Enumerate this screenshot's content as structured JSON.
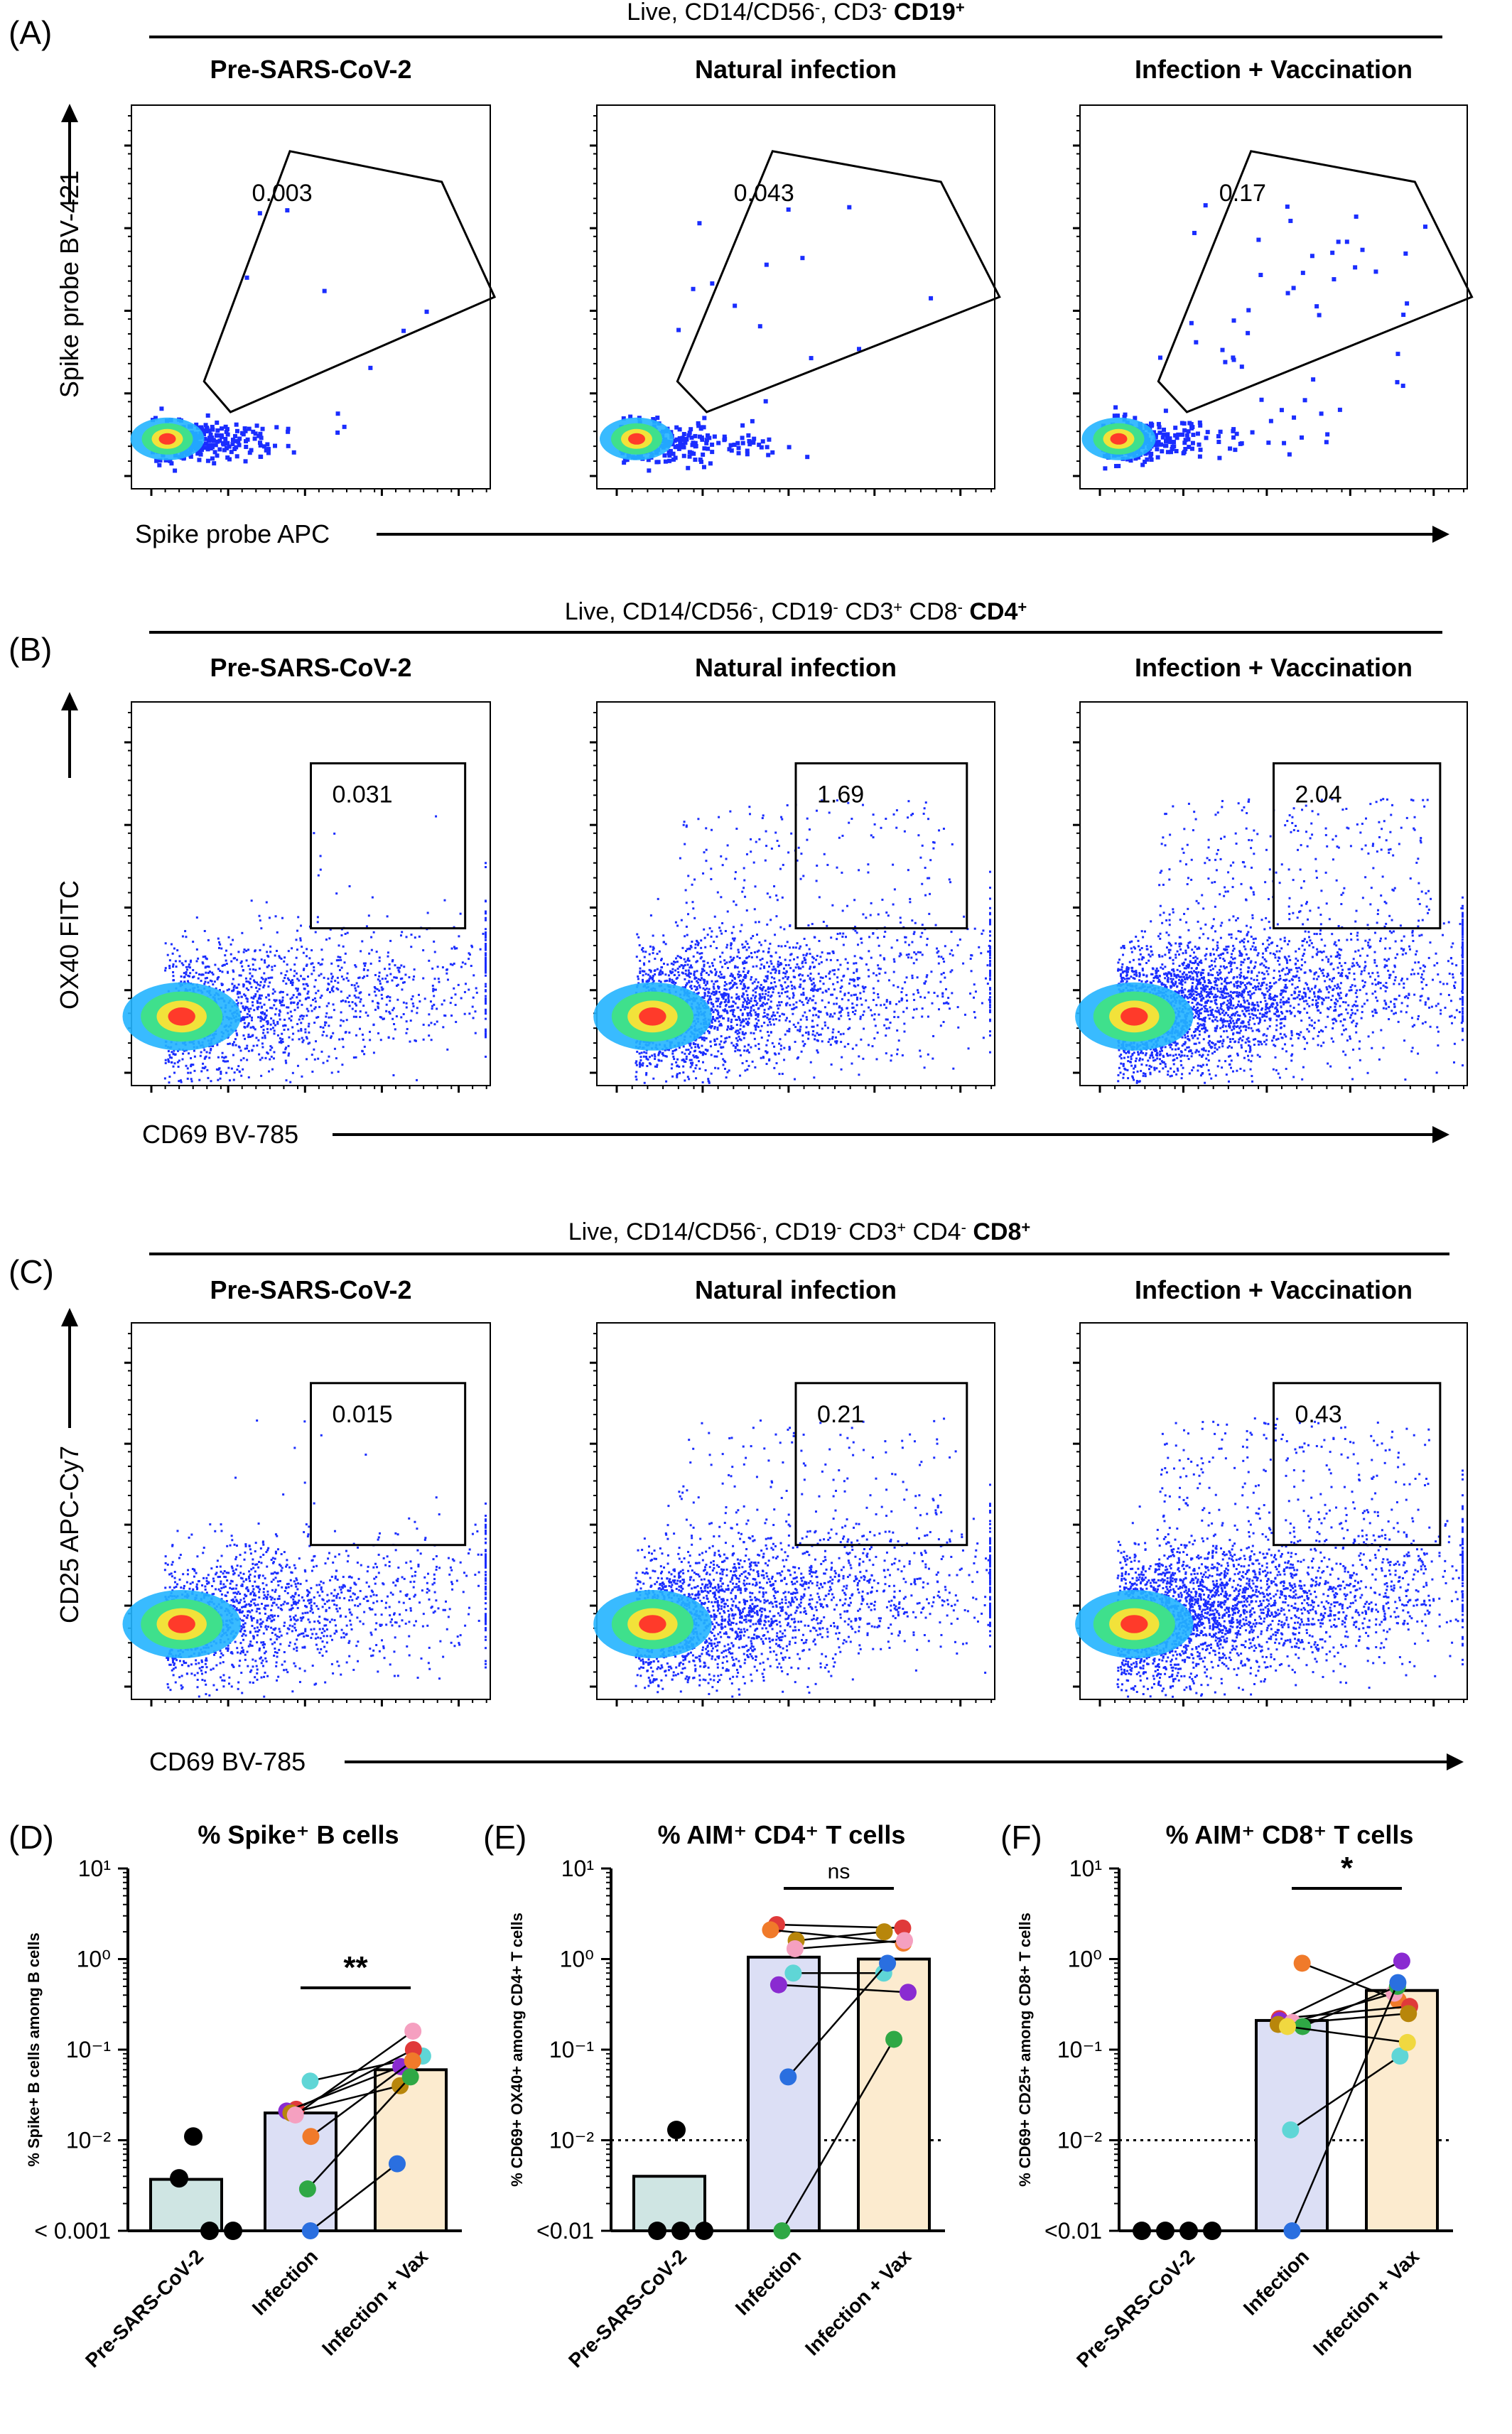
{
  "panels_flow": [
    {
      "letter": "(A)",
      "header": {
        "prefix": "Live, CD14/CD56",
        "sup1": "-",
        "mid": ", CD3",
        "sup2": "-",
        "bold": "CD19",
        "sup3": "+"
      },
      "ylabel": "Spike probe BV-421",
      "xlabel": "Spike probe APC",
      "plots": [
        {
          "title": "Pre-SARS-CoV-2",
          "gate_value": "0.003"
        },
        {
          "title": "Natural infection",
          "gate_value": "0.043"
        },
        {
          "title": "Infection + Vaccination",
          "gate_value": "0.17"
        }
      ]
    },
    {
      "letter": "(B)",
      "header": {
        "prefix": "Live, CD14/CD56",
        "sup1": "-",
        "mid": ", CD19",
        "sup2": "-",
        "mid2": " CD3",
        "sup3": "+",
        "mid3": " CD8",
        "sup4": "-",
        "bold": "CD4",
        "sup5": "+"
      },
      "ylabel": "OX40 FITC",
      "xlabel": "CD69 BV-785",
      "plots": [
        {
          "title": "Pre-SARS-CoV-2",
          "gate_value": "0.031"
        },
        {
          "title": "Natural infection",
          "gate_value": "1.69"
        },
        {
          "title": "Infection + Vaccination",
          "gate_value": "2.04"
        }
      ]
    },
    {
      "letter": "(C)",
      "header": {
        "prefix": "Live, CD14/CD56",
        "sup1": "-",
        "mid": ", CD19",
        "sup2": "-",
        "mid2": " CD3",
        "sup3": "+",
        "mid3": " CD4",
        "sup4": "-",
        "bold": "CD8",
        "sup5": "+"
      },
      "ylabel": "CD25 APC-Cy7",
      "xlabel": "CD69 BV-785",
      "plots": [
        {
          "title": "Pre-SARS-CoV-2",
          "gate_value": "0.015"
        },
        {
          "title": "Natural infection",
          "gate_value": "0.21"
        },
        {
          "title": "Infection + Vaccination",
          "gate_value": "0.43"
        }
      ]
    }
  ],
  "chart_data": [
    {
      "type": "bar",
      "letter": "(D)",
      "title": "% Spike⁺ B cells",
      "ylabel": "% Spike+ B cells among B cells",
      "yscale": "log",
      "yticks": [
        "10¹",
        "10⁰",
        "10⁻¹",
        "10⁻²",
        "< 0.001"
      ],
      "ylim": [
        0.001,
        10
      ],
      "categories": [
        "Pre-SARS-CoV-2",
        "Infection",
        "Infection + Vax"
      ],
      "bar_values": [
        0.0037,
        0.02,
        0.06
      ],
      "bar_colors": [
        "#cfe5e3",
        "#dcdff5",
        "#fcebcf"
      ],
      "significance": {
        "label": "**",
        "from": "Infection",
        "to": "Infection + Vax"
      },
      "reference_line": null,
      "points_pre": [
        0.011,
        0.0038,
        0.001,
        0.001
      ],
      "paired": [
        {
          "color": "#5fd6d6",
          "infection": 0.045,
          "vax": 0.085
        },
        {
          "color": "#e03a3a",
          "infection": 0.022,
          "vax": 0.1
        },
        {
          "color": "#8a2bd1",
          "infection": 0.021,
          "vax": 0.065
        },
        {
          "color": "#b8860b",
          "infection": 0.02,
          "vax": 0.04
        },
        {
          "color": "#f5a0c0",
          "infection": 0.019,
          "vax": 0.16
        },
        {
          "color": "#f07a2a",
          "infection": 0.011,
          "vax": 0.075
        },
        {
          "color": "#2fa845",
          "infection": 0.0029,
          "vax": 0.05
        },
        {
          "color": "#2a6fe0",
          "infection": 0.001,
          "vax": 0.0055
        }
      ]
    },
    {
      "type": "bar",
      "letter": "(E)",
      "title": "% AIM⁺ CD4⁺ T cells",
      "ylabel": "% CD69+ OX40+ among CD4+ T cells",
      "yscale": "log",
      "yticks": [
        "10¹",
        "10⁰",
        "10⁻¹",
        "10⁻²",
        "<0.01"
      ],
      "ylim": [
        0.001,
        10
      ],
      "categories": [
        "Pre-SARS-CoV-2",
        "Infection",
        "Infection + Vax"
      ],
      "bar_values": [
        0.004,
        1.05,
        1.0
      ],
      "bar_colors": [
        "#cfe5e3",
        "#dcdff5",
        "#fcebcf"
      ],
      "significance": {
        "label": "ns",
        "from": "Infection",
        "to": "Infection + Vax"
      },
      "reference_line": 0.01,
      "points_pre": [
        0.013,
        0.001,
        0.001,
        0.001
      ],
      "paired": [
        {
          "color": "#e03a3a",
          "infection": 2.4,
          "vax": 2.2
        },
        {
          "color": "#f07a2a",
          "infection": 2.1,
          "vax": 1.5
        },
        {
          "color": "#b8860b",
          "infection": 1.6,
          "vax": 2.0
        },
        {
          "color": "#f5a0c0",
          "infection": 1.3,
          "vax": 1.6
        },
        {
          "color": "#5fd6d6",
          "infection": 0.7,
          "vax": 0.7
        },
        {
          "color": "#8a2bd1",
          "infection": 0.52,
          "vax": 0.43
        },
        {
          "color": "#2a6fe0",
          "infection": 0.05,
          "vax": 0.9
        },
        {
          "color": "#2fa845",
          "infection": 0.001,
          "vax": 0.13
        }
      ]
    },
    {
      "type": "bar",
      "letter": "(F)",
      "title": "% AIM⁺ CD8⁺ T cells",
      "ylabel": "% CD69+ CD25+ among CD8+ T cells",
      "yscale": "log",
      "yticks": [
        "10¹",
        "10⁰",
        "10⁻¹",
        "10⁻²",
        "<0.01"
      ],
      "ylim": [
        0.001,
        10
      ],
      "categories": [
        "Pre-SARS-CoV-2",
        "Infection",
        "Infection + Vax"
      ],
      "bar_values": [
        0,
        0.21,
        0.45
      ],
      "bar_colors": [
        "#cfe5e3",
        "#dcdff5",
        "#fcebcf"
      ],
      "significance": {
        "label": "*",
        "from": "Infection",
        "to": "Infection + Vax"
      },
      "reference_line": 0.01,
      "points_pre": [
        0.001,
        0.001,
        0.001,
        0.001
      ],
      "paired": [
        {
          "color": "#f07a2a",
          "infection": 0.9,
          "vax": 0.35
        },
        {
          "color": "#e03a3a",
          "infection": 0.22,
          "vax": 0.3
        },
        {
          "color": "#8a2bd1",
          "infection": 0.21,
          "vax": 0.95
        },
        {
          "color": "#f5a0c0",
          "infection": 0.2,
          "vax": 0.42
        },
        {
          "color": "#b8860b",
          "infection": 0.19,
          "vax": 0.25
        },
        {
          "color": "#2fa845",
          "infection": 0.18,
          "vax": 0.5
        },
        {
          "color": "#5fd6d6",
          "infection": 0.013,
          "vax": 0.085
        },
        {
          "color": "#2a6fe0",
          "infection": 0.001,
          "vax": 0.55
        },
        {
          "color": "#f0d840",
          "infection": 0.18,
          "vax": 0.12
        }
      ]
    }
  ]
}
